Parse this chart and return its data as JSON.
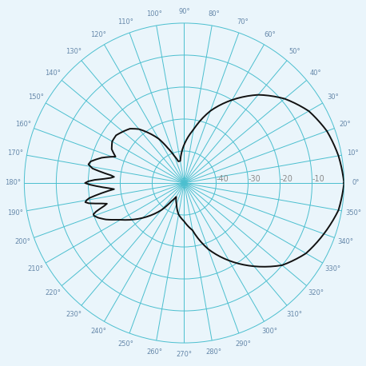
{
  "grid_color": "#4bbfcf",
  "pattern_color": "#111111",
  "background_color": "#eaf5fb",
  "radial_ticks": [
    -40,
    -30,
    -20,
    -10
  ],
  "radial_tick_labels": [
    "-40",
    "-30",
    "-20",
    "-10"
  ],
  "radial_min": -50,
  "radial_max": 0,
  "figsize": [
    4.58,
    4.58
  ],
  "dpi": 100,
  "pattern_dB": {
    "0": 0,
    "10": -1.0,
    "20": -2.5,
    "30": -5.0,
    "40": -9.0,
    "50": -14.0,
    "60": -20.0,
    "70": -26.0,
    "80": -33.0,
    "90": -38.0,
    "100": -43.0,
    "105": -43.0,
    "110": -41.0,
    "115": -38.0,
    "120": -34.0,
    "125": -31.0,
    "130": -28.0,
    "135": -26.0,
    "140": -25.0,
    "145": -24.0,
    "150": -24.0,
    "155": -25.0,
    "157": -26.0,
    "159": -27.0,
    "161": -25.0,
    "163": -23.0,
    "165": -21.5,
    "167": -20.0,
    "169": -19.5,
    "171": -21.0,
    "172": -23.0,
    "173": -25.0,
    "174": -27.0,
    "175": -28.0,
    "176": -27.0,
    "177": -25.0,
    "178": -22.0,
    "179": -20.0,
    "180": -19.0,
    "181": -20.5,
    "182": -22.5,
    "183": -24.5,
    "184": -26.5,
    "185": -28.0,
    "186": -26.0,
    "187": -24.0,
    "188": -22.0,
    "189": -20.0,
    "190": -19.0,
    "191": -18.5,
    "192": -19.5,
    "193": -21.5,
    "194": -23.5,
    "195": -25.0,
    "196": -24.0,
    "197": -22.5,
    "198": -21.0,
    "199": -20.0,
    "200": -20.0,
    "202": -21.0,
    "205": -23.0,
    "208": -25.5,
    "210": -27.0,
    "215": -30.0,
    "220": -33.0,
    "225": -36.0,
    "230": -39.0,
    "235": -43.0,
    "240": -45.0,
    "250": -43.0,
    "260": -40.0,
    "270": -38.0,
    "280": -35.0,
    "290": -28.0,
    "300": -22.0,
    "310": -16.0,
    "320": -10.0,
    "330": -6.0,
    "340": -3.5,
    "350": -1.0,
    "360": 0
  },
  "angle_labels": [
    0,
    10,
    20,
    30,
    40,
    50,
    60,
    70,
    80,
    90,
    100,
    110,
    120,
    130,
    140,
    150,
    160,
    170,
    180,
    190,
    200,
    210,
    220,
    230,
    240,
    250,
    260,
    270,
    280,
    290,
    300,
    310,
    320,
    330,
    340,
    350
  ]
}
